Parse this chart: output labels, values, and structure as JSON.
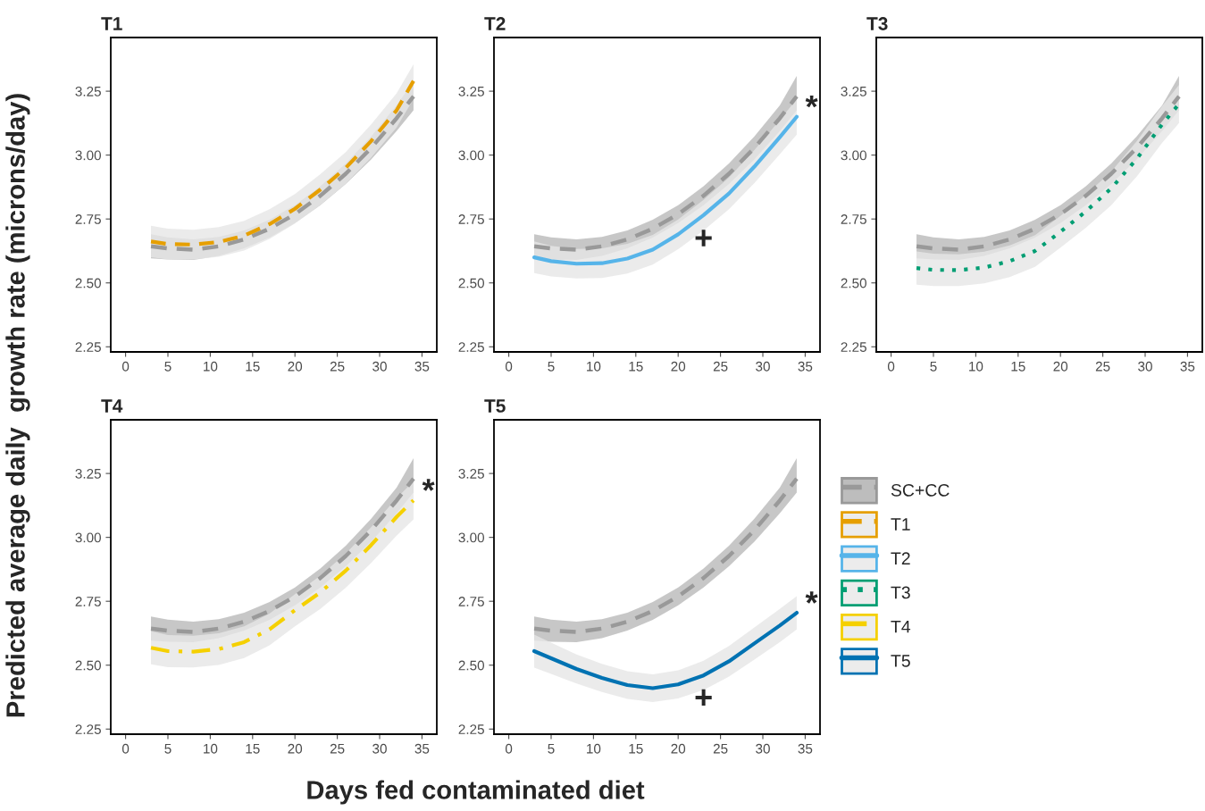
{
  "chart_data": [
    {
      "type": "line",
      "title": "T1",
      "legend": "right",
      "ylabel": "Predicted average daily  growth rate (microns/day)",
      "xlim": [
        -1.75,
        36.75
      ],
      "ylim": [
        2.23,
        3.46
      ],
      "xticks": [
        0,
        5,
        10,
        15,
        20,
        25,
        30,
        35
      ],
      "yticks": [
        {
          "value": 2.25,
          "label": "2.25"
        },
        {
          "value": 2.5,
          "label": "2.50"
        },
        {
          "value": 2.75,
          "label": "2.75"
        },
        {
          "value": 3.0,
          "label": "3.00"
        },
        {
          "value": 3.25,
          "label": "3.25"
        }
      ],
      "x": [
        3,
        5,
        8,
        11,
        14,
        17,
        20,
        23,
        26,
        29,
        32,
        34
      ],
      "series": [
        {
          "name": "SC+CC",
          "color": "#999999",
          "line_style": "dashed",
          "values": [
            2.643,
            2.635,
            2.63,
            2.643,
            2.67,
            2.712,
            2.769,
            2.841,
            2.927,
            3.028,
            3.144,
            3.23
          ],
          "lower": [
            2.596,
            2.592,
            2.59,
            2.606,
            2.635,
            2.677,
            2.734,
            2.804,
            2.887,
            2.983,
            3.094,
            3.175
          ],
          "upper": [
            2.69,
            2.678,
            2.67,
            2.68,
            2.705,
            2.747,
            2.804,
            2.878,
            2.967,
            3.073,
            3.194,
            3.29
          ]
        },
        {
          "name": "T1",
          "color": "#e69f00",
          "line_style": "dashed",
          "values": [
            2.662,
            2.652,
            2.65,
            2.66,
            2.685,
            2.73,
            2.79,
            2.865,
            2.95,
            3.055,
            3.175,
            3.29
          ],
          "lower": [
            2.6,
            2.592,
            2.592,
            2.602,
            2.627,
            2.672,
            2.732,
            2.805,
            2.888,
            2.99,
            3.108,
            3.22
          ],
          "upper": [
            2.724,
            2.712,
            2.708,
            2.718,
            2.743,
            2.788,
            2.848,
            2.925,
            3.012,
            3.12,
            3.242,
            3.355
          ]
        }
      ]
    },
    {
      "type": "line",
      "title": "T2",
      "xlim": [
        -1.75,
        36.75
      ],
      "ylim": [
        2.23,
        3.46
      ],
      "xticks": [
        0,
        5,
        10,
        15,
        20,
        25,
        30,
        35
      ],
      "yticks": [
        {
          "value": 2.25,
          "label": "2.25"
        },
        {
          "value": 2.5,
          "label": "2.50"
        },
        {
          "value": 2.75,
          "label": "2.75"
        },
        {
          "value": 3.0,
          "label": "3.00"
        },
        {
          "value": 3.25,
          "label": "3.25"
        }
      ],
      "x": [
        3,
        5,
        8,
        11,
        14,
        17,
        20,
        23,
        26,
        29,
        32,
        34
      ],
      "annotations": [
        "*",
        "+"
      ],
      "legend": "right",
      "series": [
        {
          "name": "SC+CC",
          "color": "#999999",
          "line_style": "dashed",
          "values": [
            2.643,
            2.635,
            2.63,
            2.643,
            2.67,
            2.712,
            2.769,
            2.841,
            2.927,
            3.028,
            3.144,
            3.23
          ],
          "lower": [
            2.596,
            2.592,
            2.59,
            2.606,
            2.635,
            2.677,
            2.734,
            2.804,
            2.887,
            2.983,
            3.094,
            3.175
          ],
          "upper": [
            2.69,
            2.678,
            2.67,
            2.68,
            2.705,
            2.747,
            2.804,
            2.878,
            2.967,
            3.073,
            3.194,
            3.31
          ]
        },
        {
          "name": "T2",
          "color": "#56b4e9",
          "line_style": "solid",
          "values": [
            2.6,
            2.585,
            2.575,
            2.577,
            2.595,
            2.63,
            2.69,
            2.765,
            2.85,
            2.955,
            3.07,
            3.15
          ],
          "lower": [
            2.538,
            2.525,
            2.517,
            2.519,
            2.537,
            2.572,
            2.632,
            2.705,
            2.788,
            2.89,
            3.003,
            3.08
          ],
          "upper": [
            2.662,
            2.645,
            2.633,
            2.635,
            2.653,
            2.688,
            2.748,
            2.825,
            2.912,
            3.02,
            3.137,
            3.22
          ]
        }
      ]
    },
    {
      "type": "line",
      "title": "T3",
      "legend": "bottom left",
      "xlim": [
        -1.75,
        36.75
      ],
      "ylim": [
        2.23,
        3.46
      ],
      "xticks": [
        0,
        5,
        10,
        15,
        20,
        25,
        30,
        35
      ],
      "yticks": [
        {
          "value": 2.25,
          "label": "2.25"
        },
        {
          "value": 2.5,
          "label": "2.50"
        },
        {
          "value": 2.75,
          "label": "2.75"
        },
        {
          "value": 3.0,
          "label": "3.00"
        },
        {
          "value": 3.25,
          "label": "3.25"
        }
      ],
      "x": [
        3,
        5,
        8,
        11,
        14,
        17,
        20,
        23,
        26,
        29,
        32,
        34
      ],
      "series": [
        {
          "name": "SC+CC",
          "color": "#999999",
          "line_style": "dashed",
          "values": [
            2.643,
            2.635,
            2.63,
            2.643,
            2.67,
            2.712,
            2.769,
            2.841,
            2.927,
            3.028,
            3.144,
            3.23
          ],
          "lower": [
            2.596,
            2.592,
            2.59,
            2.606,
            2.635,
            2.677,
            2.734,
            2.804,
            2.887,
            2.983,
            3.094,
            3.175
          ],
          "upper": [
            2.69,
            2.678,
            2.67,
            2.68,
            2.705,
            2.747,
            2.804,
            2.878,
            2.967,
            3.073,
            3.194,
            3.31
          ]
        },
        {
          "name": "T3",
          "color": "#009e73",
          "line_style": "dotted",
          "values": [
            2.558,
            2.551,
            2.55,
            2.56,
            2.585,
            2.625,
            2.7,
            2.78,
            2.87,
            2.985,
            3.12,
            3.2
          ],
          "lower": [
            2.493,
            2.488,
            2.488,
            2.498,
            2.523,
            2.563,
            2.638,
            2.716,
            2.804,
            2.916,
            3.048,
            3.125
          ],
          "upper": [
            2.623,
            2.614,
            2.612,
            2.622,
            2.647,
            2.687,
            2.762,
            2.844,
            2.936,
            3.054,
            3.192,
            3.275
          ]
        }
      ]
    },
    {
      "type": "line",
      "title": "T4",
      "xlim": [
        -1.75,
        36.75
      ],
      "ylim": [
        2.23,
        3.46
      ],
      "xticks": [
        0,
        5,
        10,
        15,
        20,
        25,
        30,
        35
      ],
      "yticks": [
        {
          "value": 2.25,
          "label": "2.25"
        },
        {
          "value": 2.5,
          "label": "2.50"
        },
        {
          "value": 2.75,
          "label": "2.75"
        },
        {
          "value": 3.0,
          "label": "3.00"
        },
        {
          "value": 3.25,
          "label": "3.25"
        }
      ],
      "x": [
        3,
        5,
        8,
        11,
        14,
        17,
        20,
        23,
        26,
        29,
        32,
        34
      ],
      "annotations": [
        "*"
      ],
      "legend": "right",
      "series": [
        {
          "name": "SC+CC",
          "color": "#999999",
          "line_style": "dashed",
          "values": [
            2.643,
            2.635,
            2.63,
            2.643,
            2.67,
            2.712,
            2.769,
            2.841,
            2.927,
            3.028,
            3.144,
            3.23
          ],
          "lower": [
            2.596,
            2.592,
            2.59,
            2.606,
            2.635,
            2.677,
            2.734,
            2.804,
            2.887,
            2.983,
            3.094,
            3.175
          ],
          "upper": [
            2.69,
            2.678,
            2.67,
            2.68,
            2.705,
            2.747,
            2.804,
            2.878,
            2.967,
            3.073,
            3.194,
            3.31
          ]
        },
        {
          "name": "T4",
          "color": "#f5d000",
          "line_style": "dashdot",
          "values": [
            2.568,
            2.555,
            2.553,
            2.563,
            2.59,
            2.64,
            2.715,
            2.785,
            2.87,
            2.97,
            3.08,
            3.145
          ],
          "lower": [
            2.503,
            2.492,
            2.491,
            2.501,
            2.528,
            2.578,
            2.652,
            2.72,
            2.803,
            2.9,
            3.007,
            3.07
          ],
          "upper": [
            2.633,
            2.618,
            2.615,
            2.625,
            2.652,
            2.702,
            2.778,
            2.85,
            2.937,
            3.04,
            3.153,
            3.22
          ]
        }
      ]
    },
    {
      "type": "line",
      "title": "T5",
      "xlabel": "Days fed contaminated diet",
      "legend": "right",
      "xlim": [
        -1.75,
        36.75
      ],
      "ylim": [
        2.23,
        3.46
      ],
      "xticks": [
        0,
        5,
        10,
        15,
        20,
        25,
        30,
        35
      ],
      "yticks": [
        {
          "value": 2.25,
          "label": "2.25"
        },
        {
          "value": 2.5,
          "label": "2.50"
        },
        {
          "value": 2.75,
          "label": "2.75"
        },
        {
          "value": 3.0,
          "label": "3.00"
        },
        {
          "value": 3.25,
          "label": "3.25"
        }
      ],
      "x": [
        3,
        5,
        8,
        11,
        14,
        17,
        20,
        23,
        26,
        29,
        32,
        34
      ],
      "annotations": [
        "*",
        "+"
      ],
      "series": [
        {
          "name": "SC+CC",
          "color": "#999999",
          "line_style": "dashed",
          "values": [
            2.643,
            2.635,
            2.63,
            2.643,
            2.67,
            2.712,
            2.769,
            2.841,
            2.927,
            3.028,
            3.144,
            3.23
          ],
          "lower": [
            2.596,
            2.592,
            2.59,
            2.606,
            2.635,
            2.677,
            2.734,
            2.804,
            2.887,
            2.983,
            3.094,
            3.175
          ],
          "upper": [
            2.69,
            2.678,
            2.67,
            2.68,
            2.705,
            2.747,
            2.804,
            2.878,
            2.967,
            3.073,
            3.194,
            3.31
          ]
        },
        {
          "name": "T5",
          "color": "#0072b2",
          "line_style": "solid",
          "values": [
            2.555,
            2.527,
            2.485,
            2.45,
            2.422,
            2.41,
            2.425,
            2.46,
            2.515,
            2.585,
            2.655,
            2.705
          ],
          "lower": [
            2.49,
            2.466,
            2.428,
            2.395,
            2.368,
            2.356,
            2.37,
            2.403,
            2.455,
            2.522,
            2.59,
            2.64
          ],
          "upper": [
            2.62,
            2.588,
            2.542,
            2.505,
            2.476,
            2.464,
            2.48,
            2.517,
            2.575,
            2.648,
            2.72,
            2.77
          ]
        }
      ]
    }
  ]
}
